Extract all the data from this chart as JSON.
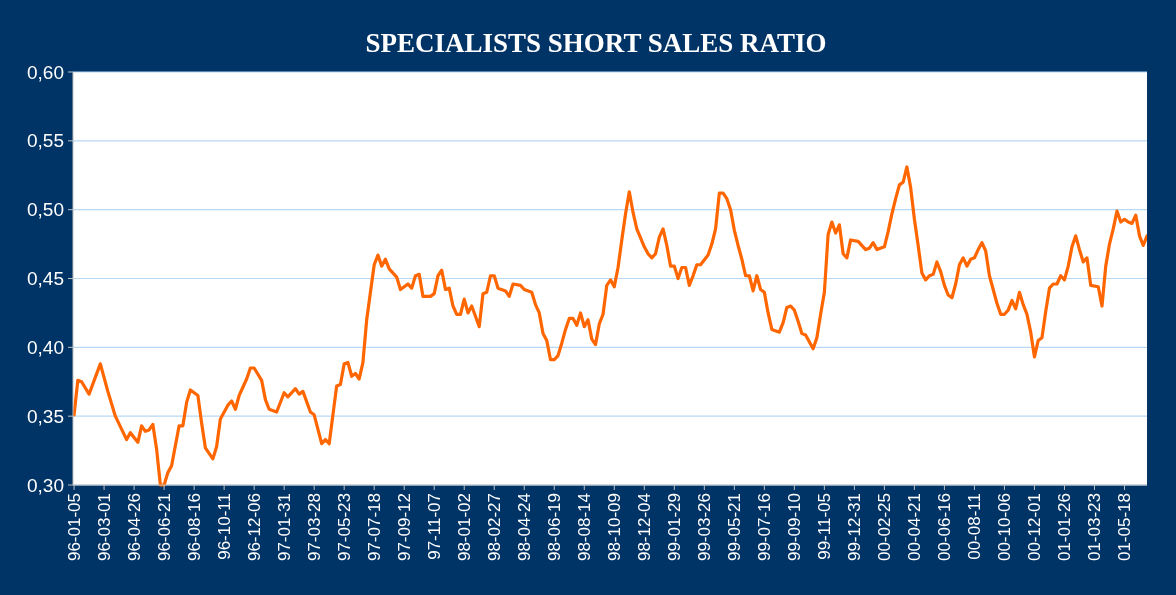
{
  "chart_data": {
    "type": "line",
    "title": "SPECIALISTS SHORT SALES RATIO",
    "grid": "y",
    "line_style": "solid",
    "ylim": [
      0.3,
      0.6
    ],
    "yticks": [
      {
        "value": 0.3,
        "label": "0,30"
      },
      {
        "value": 0.35,
        "label": "0,35"
      },
      {
        "value": 0.4,
        "label": "0,40"
      },
      {
        "value": 0.45,
        "label": "0,45"
      },
      {
        "value": 0.5,
        "label": "0,50"
      },
      {
        "value": 0.55,
        "label": "0,55"
      },
      {
        "value": 0.6,
        "label": "0,60"
      }
    ],
    "xlim": [
      "1996-01-03",
      "2001-06-29"
    ],
    "xticks": [
      {
        "value": "1996-01-05",
        "label": "96-01-05"
      },
      {
        "value": "1996-03-01",
        "label": "96-03-01"
      },
      {
        "value": "1996-04-26",
        "label": "96-04-26"
      },
      {
        "value": "1996-06-21",
        "label": "96-06-21"
      },
      {
        "value": "1996-08-16",
        "label": "96-08-16"
      },
      {
        "value": "1996-10-11",
        "label": "96-10-11"
      },
      {
        "value": "1996-12-06",
        "label": "96-12-06"
      },
      {
        "value": "1997-01-31",
        "label": "97-01-31"
      },
      {
        "value": "1997-03-28",
        "label": "97-03-28"
      },
      {
        "value": "1997-05-23",
        "label": "97-05-23"
      },
      {
        "value": "1997-07-18",
        "label": "97-07-18"
      },
      {
        "value": "1997-09-12",
        "label": "97-09-12"
      },
      {
        "value": "1997-11-07",
        "label": "97-11-07"
      },
      {
        "value": "1998-01-02",
        "label": "98-01-02"
      },
      {
        "value": "1998-02-27",
        "label": "98-02-27"
      },
      {
        "value": "1998-04-24",
        "label": "98-04-24"
      },
      {
        "value": "1998-06-19",
        "label": "98-06-19"
      },
      {
        "value": "1998-08-14",
        "label": "98-08-14"
      },
      {
        "value": "1998-10-09",
        "label": "98-10-09"
      },
      {
        "value": "1998-12-04",
        "label": "98-12-04"
      },
      {
        "value": "1999-01-29",
        "label": "99-01-29"
      },
      {
        "value": "1999-03-26",
        "label": "99-03-26"
      },
      {
        "value": "1999-05-21",
        "label": "99-05-21"
      },
      {
        "value": "1999-07-16",
        "label": "99-07-16"
      },
      {
        "value": "1999-09-10",
        "label": "99-09-10"
      },
      {
        "value": "1999-11-05",
        "label": "99-11-05"
      },
      {
        "value": "1999-12-31",
        "label": "99-12-31"
      },
      {
        "value": "2000-02-25",
        "label": "00-02-25"
      },
      {
        "value": "2000-04-21",
        "label": "00-04-21"
      },
      {
        "value": "2000-06-16",
        "label": "00-06-16"
      },
      {
        "value": "2000-08-11",
        "label": "00-08-11"
      },
      {
        "value": "2000-10-06",
        "label": "00-10-06"
      },
      {
        "value": "2000-12-01",
        "label": "00-12-01"
      },
      {
        "value": "2001-01-26",
        "label": "01-01-26"
      },
      {
        "value": "2001-03-23",
        "label": "01-03-23"
      },
      {
        "value": "2001-05-18",
        "label": "01-05-18"
      }
    ],
    "series": [
      {
        "color": "#ff6600",
        "x": [
          "1996-01-05",
          "1996-01-12",
          "1996-01-19",
          "1996-02-02",
          "1996-02-23",
          "1996-03-08",
          "1996-03-22",
          "1996-04-12",
          "1996-04-19",
          "1996-05-03",
          "1996-05-10",
          "1996-05-17",
          "1996-05-24",
          "1996-05-31",
          "1996-06-07",
          "1996-06-14",
          "1996-06-21",
          "1996-06-28",
          "1996-07-05",
          "1996-07-19",
          "1996-07-26",
          "1996-08-02",
          "1996-08-09",
          "1996-08-23",
          "1996-08-30",
          "1996-09-06",
          "1996-09-20",
          "1996-09-27",
          "1996-10-04",
          "1996-10-18",
          "1996-10-25",
          "1996-11-01",
          "1996-11-08",
          "1996-11-22",
          "1996-11-29",
          "1996-12-06",
          "1996-12-20",
          "1996-12-27",
          "1997-01-03",
          "1997-01-17",
          "1997-01-31",
          "1997-02-07",
          "1997-02-21",
          "1997-02-28",
          "1997-03-07",
          "1997-03-21",
          "1997-03-28",
          "1997-04-11",
          "1997-04-18",
          "1997-04-25",
          "1997-05-09",
          "1997-05-16",
          "1997-05-23",
          "1997-05-30",
          "1997-06-06",
          "1997-06-13",
          "1997-06-20",
          "1997-06-27",
          "1997-07-04",
          "1997-07-11",
          "1997-07-18",
          "1997-07-25",
          "1997-08-01",
          "1997-08-08",
          "1997-08-15",
          "1997-08-29",
          "1997-09-05",
          "1997-09-19",
          "1997-09-26",
          "1997-10-03",
          "1997-10-10",
          "1997-10-17",
          "1997-10-31",
          "1997-11-07",
          "1997-11-14",
          "1997-11-21",
          "1997-11-28",
          "1997-12-05",
          "1997-12-12",
          "1997-12-19",
          "1997-12-26",
          "1998-01-02",
          "1998-01-09",
          "1998-01-16",
          "1998-01-30",
          "1998-02-06",
          "1998-02-13",
          "1998-02-20",
          "1998-02-27",
          "1998-03-06",
          "1998-03-20",
          "1998-03-27",
          "1998-04-03",
          "1998-04-17",
          "1998-04-24",
          "1998-05-08",
          "1998-05-15",
          "1998-05-22",
          "1998-05-29",
          "1998-06-05",
          "1998-06-12",
          "1998-06-19",
          "1998-06-26",
          "1998-07-03",
          "1998-07-10",
          "1998-07-17",
          "1998-07-24",
          "1998-07-31",
          "1998-08-07",
          "1998-08-14",
          "1998-08-21",
          "1998-08-28",
          "1998-09-04",
          "1998-09-11",
          "1998-09-18",
          "1998-09-25",
          "1998-10-02",
          "1998-10-09",
          "1998-10-16",
          "1998-10-23",
          "1998-10-30",
          "1998-11-06",
          "1998-11-13",
          "1998-11-20",
          "1998-12-04",
          "1998-12-11",
          "1998-12-18",
          "1998-12-25",
          "1999-01-01",
          "1999-01-08",
          "1999-01-15",
          "1999-01-22",
          "1999-01-29",
          "1999-02-05",
          "1999-02-12",
          "1999-02-19",
          "1999-02-26",
          "1999-03-05",
          "1999-03-12",
          "1999-03-19",
          "1999-04-02",
          "1999-04-09",
          "1999-04-16",
          "1999-04-23",
          "1999-04-30",
          "1999-05-07",
          "1999-05-14",
          "1999-05-21",
          "1999-05-28",
          "1999-06-04",
          "1999-06-11",
          "1999-06-18",
          "1999-06-25",
          "1999-07-02",
          "1999-07-09",
          "1999-07-16",
          "1999-07-23",
          "1999-07-30",
          "1999-08-13",
          "1999-08-20",
          "1999-08-27",
          "1999-09-03",
          "1999-09-10",
          "1999-09-17",
          "1999-09-24",
          "1999-10-01",
          "1999-10-15",
          "1999-10-22",
          "1999-10-29",
          "1999-11-05",
          "1999-11-12",
          "1999-11-19",
          "1999-11-26",
          "1999-12-03",
          "1999-12-10",
          "1999-12-17",
          "1999-12-24",
          "2000-01-07",
          "2000-01-21",
          "2000-01-28",
          "2000-02-04",
          "2000-02-11",
          "2000-02-25",
          "2000-03-03",
          "2000-03-10",
          "2000-03-17",
          "2000-03-24",
          "2000-03-31",
          "2000-04-07",
          "2000-04-14",
          "2000-04-21",
          "2000-04-28",
          "2000-05-05",
          "2000-05-12",
          "2000-05-19",
          "2000-05-26",
          "2000-06-02",
          "2000-06-09",
          "2000-06-16",
          "2000-06-23",
          "2000-06-30",
          "2000-07-07",
          "2000-07-14",
          "2000-07-21",
          "2000-07-28",
          "2000-08-04",
          "2000-08-11",
          "2000-08-18",
          "2000-08-25",
          "2000-09-01",
          "2000-09-08",
          "2000-09-22",
          "2000-09-29",
          "2000-10-06",
          "2000-10-13",
          "2000-10-20",
          "2000-10-27",
          "2000-11-03",
          "2000-11-10",
          "2000-11-17",
          "2000-11-24",
          "2000-12-01",
          "2000-12-08",
          "2000-12-15",
          "2000-12-22",
          "2000-12-29",
          "2001-01-05",
          "2001-01-12",
          "2001-01-19",
          "2001-01-26",
          "2001-02-02",
          "2001-02-09",
          "2001-02-16",
          "2001-02-23",
          "2001-03-02",
          "2001-03-09",
          "2001-03-16",
          "2001-03-30",
          "2001-04-06",
          "2001-04-13",
          "2001-04-20",
          "2001-04-27",
          "2001-05-04",
          "2001-05-11",
          "2001-05-18",
          "2001-05-25",
          "2001-06-01",
          "2001-06-08",
          "2001-06-15",
          "2001-06-22",
          "2001-06-29"
        ],
        "values": [
          0.351,
          0.376,
          0.375,
          0.366,
          0.388,
          0.368,
          0.35,
          0.333,
          0.338,
          0.331,
          0.343,
          0.339,
          0.34,
          0.344,
          0.326,
          0.3,
          0.3,
          0.309,
          0.314,
          0.343,
          0.343,
          0.36,
          0.369,
          0.365,
          0.345,
          0.327,
          0.319,
          0.328,
          0.348,
          0.358,
          0.361,
          0.355,
          0.365,
          0.377,
          0.385,
          0.385,
          0.376,
          0.362,
          0.355,
          0.353,
          0.367,
          0.364,
          0.37,
          0.366,
          0.368,
          0.353,
          0.351,
          0.33,
          0.333,
          0.33,
          0.372,
          0.373,
          0.388,
          0.389,
          0.379,
          0.381,
          0.377,
          0.389,
          0.42,
          0.44,
          0.46,
          0.467,
          0.459,
          0.464,
          0.457,
          0.451,
          0.442,
          0.446,
          0.443,
          0.452,
          0.453,
          0.437,
          0.437,
          0.439,
          0.452,
          0.456,
          0.442,
          0.443,
          0.43,
          0.424,
          0.424,
          0.435,
          0.425,
          0.43,
          0.415,
          0.439,
          0.44,
          0.452,
          0.452,
          0.443,
          0.441,
          0.437,
          0.446,
          0.445,
          0.442,
          0.44,
          0.431,
          0.425,
          0.41,
          0.405,
          0.391,
          0.391,
          0.394,
          0.403,
          0.413,
          0.421,
          0.421,
          0.416,
          0.425,
          0.415,
          0.42,
          0.406,
          0.402,
          0.417,
          0.424,
          0.445,
          0.449,
          0.444,
          0.458,
          0.478,
          0.497,
          0.513,
          0.498,
          0.486,
          0.473,
          0.468,
          0.465,
          0.468,
          0.48,
          0.486,
          0.474,
          0.459,
          0.459,
          0.45,
          0.458,
          0.458,
          0.445,
          0.452,
          0.46,
          0.46,
          0.467,
          0.475,
          0.486,
          0.512,
          0.512,
          0.508,
          0.5,
          0.485,
          0.474,
          0.464,
          0.452,
          0.452,
          0.441,
          0.452,
          0.442,
          0.44,
          0.425,
          0.413,
          0.411,
          0.418,
          0.429,
          0.43,
          0.427,
          0.419,
          0.41,
          0.409,
          0.399,
          0.407,
          0.424,
          0.44,
          0.482,
          0.491,
          0.483,
          0.489,
          0.468,
          0.465,
          0.478,
          0.477,
          0.471,
          0.472,
          0.476,
          0.471,
          0.473,
          0.484,
          0.497,
          0.508,
          0.518,
          0.52,
          0.531,
          0.516,
          0.493,
          0.474,
          0.454,
          0.449,
          0.452,
          0.453,
          0.462,
          0.455,
          0.445,
          0.438,
          0.436,
          0.446,
          0.46,
          0.465,
          0.459,
          0.464,
          0.465,
          0.471,
          0.476,
          0.47,
          0.452,
          0.432,
          0.424,
          0.424,
          0.427,
          0.434,
          0.428,
          0.44,
          0.431,
          0.424,
          0.411,
          0.393,
          0.405,
          0.407,
          0.426,
          0.443,
          0.446,
          0.446,
          0.452,
          0.449,
          0.459,
          0.473,
          0.481,
          0.471,
          0.462,
          0.465,
          0.445,
          0.444,
          0.43,
          0.459,
          0.475,
          0.486,
          0.499,
          0.491,
          0.493,
          0.491,
          0.49,
          0.496,
          0.481,
          0.474,
          0.481
        ]
      }
    ]
  }
}
